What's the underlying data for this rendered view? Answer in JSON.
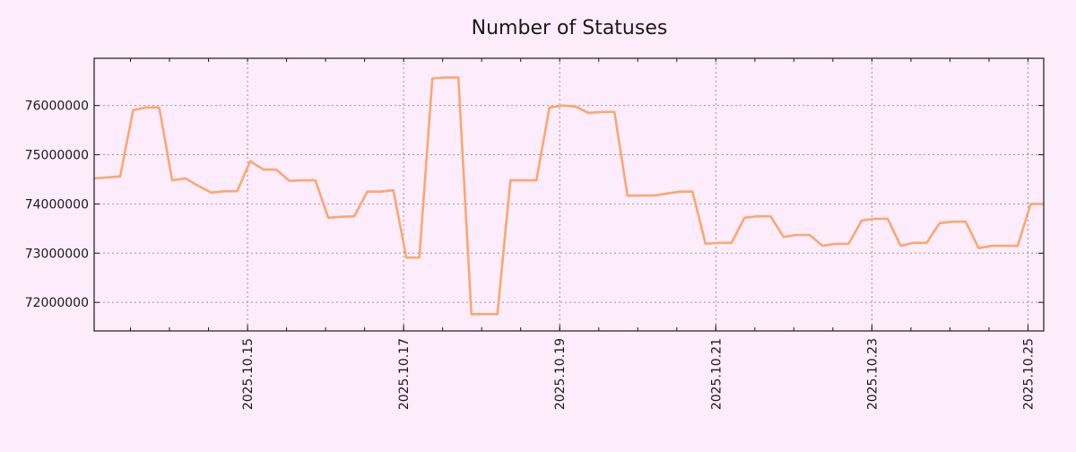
{
  "chart_data": {
    "type": "line",
    "title": "Number of Statuses",
    "xlabel": "",
    "ylabel": "",
    "x_start": "2025-10-13T00:50",
    "x_end": "2025-10-25T04:50",
    "x_ticks": [
      "2025.10.15",
      "2025.10.17",
      "2025.10.19",
      "2025.10.21",
      "2025.10.23",
      "2025.10.25"
    ],
    "y_ticks": [
      "72000000",
      "73000000",
      "74000000",
      "75000000",
      "76000000"
    ],
    "ylim": [
      71420000,
      76960000
    ],
    "grid": true,
    "legend": "none",
    "series": [
      {
        "name": "Number of Statuses",
        "color": "#f9a870",
        "values": [
          74520000,
          74540000,
          74560000,
          75910000,
          75960000,
          75960000,
          74480000,
          74520000,
          74370000,
          74230000,
          74260000,
          74260000,
          74870000,
          74700000,
          74700000,
          74470000,
          74480000,
          74480000,
          73720000,
          73740000,
          73750000,
          74250000,
          74250000,
          74280000,
          72910000,
          72910000,
          76550000,
          76570000,
          76570000,
          71760000,
          71760000,
          71760000,
          74480000,
          74480000,
          74480000,
          75960000,
          76000000,
          75980000,
          75850000,
          75870000,
          75870000,
          74170000,
          74170000,
          74170000,
          74210000,
          74250000,
          74250000,
          73190000,
          73210000,
          73210000,
          73720000,
          73750000,
          73750000,
          73330000,
          73370000,
          73370000,
          73150000,
          73190000,
          73190000,
          73660000,
          73700000,
          73700000,
          73150000,
          73210000,
          73210000,
          73610000,
          73640000,
          73640000,
          73100000,
          73150000,
          73150000,
          73150000,
          74000000,
          74000000
        ]
      }
    ]
  }
}
